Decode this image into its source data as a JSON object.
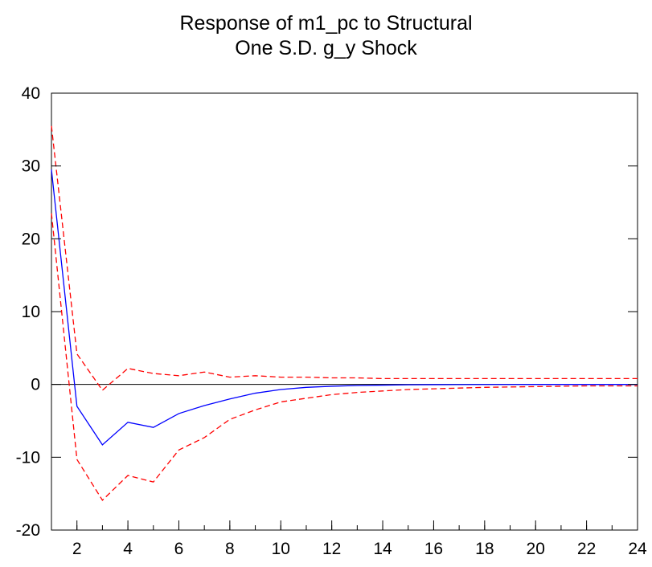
{
  "chart_data": {
    "type": "line",
    "title": [
      "Response of m1_pc to Structural",
      "One S.D. g_y Shock"
    ],
    "xlabel": "",
    "ylabel": "",
    "xlim": [
      1,
      24
    ],
    "ylim": [
      -20,
      40
    ],
    "x_ticks": [
      2,
      4,
      6,
      8,
      10,
      12,
      14,
      16,
      18,
      20,
      22,
      24
    ],
    "y_ticks": [
      -20,
      -10,
      0,
      10,
      20,
      30,
      40
    ],
    "grid": false,
    "zero_line": true,
    "x": [
      1,
      2,
      3,
      4,
      5,
      6,
      7,
      8,
      9,
      10,
      11,
      12,
      13,
      14,
      15,
      16,
      17,
      18,
      19,
      20,
      21,
      22,
      23,
      24
    ],
    "series": [
      {
        "role": "response",
        "color": "#0000ff",
        "style": "solid",
        "values": [
          29.5,
          -3.0,
          -8.3,
          -5.2,
          -5.9,
          -4.0,
          -2.9,
          -2.0,
          -1.2,
          -0.7,
          -0.4,
          -0.25,
          -0.15,
          -0.1,
          -0.05,
          -0.03,
          -0.02,
          -0.01,
          -0.01,
          0.0,
          0.0,
          0.0,
          0.0,
          0.0
        ]
      },
      {
        "role": "upper-band",
        "color": "#ff0000",
        "style": "dashed",
        "values": [
          35.5,
          4.2,
          -0.8,
          2.2,
          1.5,
          1.2,
          1.7,
          1.0,
          1.2,
          1.0,
          1.0,
          0.9,
          0.9,
          0.8,
          0.8,
          0.8,
          0.8,
          0.8,
          0.8,
          0.8,
          0.8,
          0.8,
          0.8,
          0.8
        ]
      },
      {
        "role": "lower-band",
        "color": "#ff0000",
        "style": "dashed",
        "values": [
          23.5,
          -10.3,
          -15.9,
          -12.5,
          -13.4,
          -9.0,
          -7.3,
          -4.8,
          -3.5,
          -2.4,
          -1.9,
          -1.4,
          -1.1,
          -0.9,
          -0.7,
          -0.6,
          -0.5,
          -0.4,
          -0.35,
          -0.3,
          -0.25,
          -0.2,
          -0.2,
          -0.2
        ]
      }
    ]
  }
}
